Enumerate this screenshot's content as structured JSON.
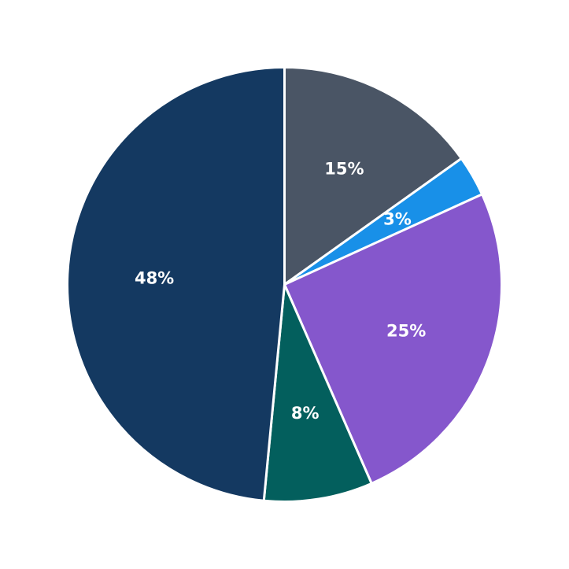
{
  "chart_data": {
    "type": "pie",
    "start_angle_deg": 90,
    "direction": "clockwise",
    "slices": [
      {
        "value": 15,
        "label": "15%",
        "color": "#4a5565"
      },
      {
        "value": 3,
        "label": "3%",
        "color": "#1890e8"
      },
      {
        "value": 25,
        "label": "25%",
        "color": "#8557cc"
      },
      {
        "value": 8,
        "label": "8%",
        "color": "#035f5d"
      },
      {
        "value": 48,
        "label": "48%",
        "color": "#143961"
      }
    ],
    "edge_color": "#ffffff"
  }
}
